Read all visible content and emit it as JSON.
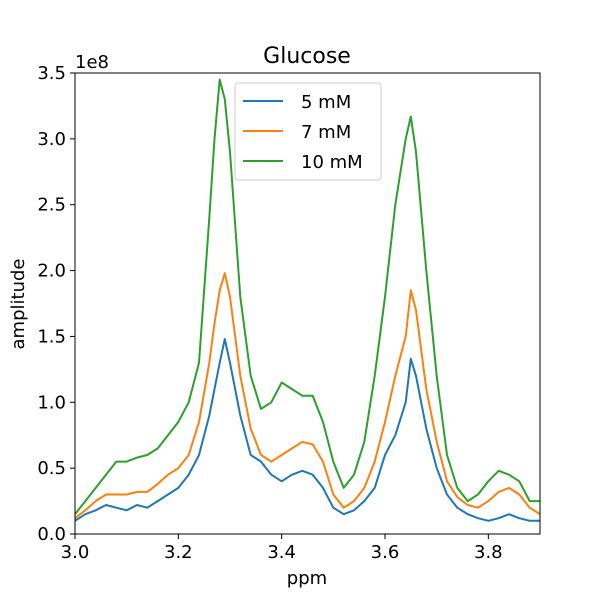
{
  "chart_data": {
    "type": "line",
    "title": "Glucose",
    "xlabel": "ppm",
    "ylabel": "amplitude",
    "y_offset_label": "1e8",
    "xlim": [
      3.0,
      3.9
    ],
    "ylim": [
      0,
      3.5
    ],
    "y_unit_multiplier": 100000000,
    "xticks": [
      3.0,
      3.2,
      3.4,
      3.6,
      3.8
    ],
    "xtick_labels": [
      "3.0",
      "3.2",
      "3.4",
      "3.6",
      "3.8"
    ],
    "yticks": [
      0.0,
      0.5,
      1.0,
      1.5,
      2.0,
      2.5,
      3.0,
      3.5
    ],
    "ytick_labels": [
      "0.0",
      "0.5",
      "1.0",
      "1.5",
      "2.0",
      "2.5",
      "3.0",
      "3.5"
    ],
    "grid": false,
    "legend_position": "top-center",
    "x": [
      3.0,
      3.02,
      3.04,
      3.06,
      3.08,
      3.1,
      3.12,
      3.14,
      3.16,
      3.18,
      3.2,
      3.22,
      3.24,
      3.26,
      3.27,
      3.28,
      3.29,
      3.3,
      3.32,
      3.34,
      3.36,
      3.38,
      3.4,
      3.42,
      3.44,
      3.46,
      3.48,
      3.5,
      3.52,
      3.54,
      3.56,
      3.58,
      3.6,
      3.62,
      3.64,
      3.65,
      3.66,
      3.68,
      3.7,
      3.72,
      3.74,
      3.76,
      3.78,
      3.8,
      3.82,
      3.84,
      3.86,
      3.88,
      3.9
    ],
    "series": [
      {
        "name": "5 mM",
        "color": "#1f77b4",
        "values": [
          0.1,
          0.15,
          0.18,
          0.22,
          0.2,
          0.18,
          0.22,
          0.2,
          0.25,
          0.3,
          0.35,
          0.45,
          0.6,
          0.9,
          1.1,
          1.3,
          1.48,
          1.3,
          0.9,
          0.6,
          0.55,
          0.45,
          0.4,
          0.45,
          0.48,
          0.45,
          0.35,
          0.2,
          0.15,
          0.18,
          0.25,
          0.35,
          0.6,
          0.75,
          1.0,
          1.33,
          1.2,
          0.8,
          0.5,
          0.3,
          0.2,
          0.15,
          0.12,
          0.1,
          0.12,
          0.15,
          0.12,
          0.1,
          0.1
        ]
      },
      {
        "name": "7 mM",
        "color": "#ff7f0e",
        "values": [
          0.12,
          0.18,
          0.25,
          0.3,
          0.3,
          0.3,
          0.32,
          0.32,
          0.38,
          0.45,
          0.5,
          0.6,
          0.85,
          1.3,
          1.6,
          1.85,
          1.98,
          1.8,
          1.2,
          0.8,
          0.6,
          0.55,
          0.6,
          0.65,
          0.7,
          0.68,
          0.55,
          0.3,
          0.2,
          0.25,
          0.35,
          0.55,
          0.85,
          1.2,
          1.5,
          1.85,
          1.7,
          1.1,
          0.7,
          0.4,
          0.28,
          0.22,
          0.2,
          0.25,
          0.32,
          0.35,
          0.3,
          0.2,
          0.15
        ]
      },
      {
        "name": "10 mM",
        "color": "#2ca02c",
        "values": [
          0.15,
          0.25,
          0.35,
          0.45,
          0.55,
          0.55,
          0.58,
          0.6,
          0.65,
          0.75,
          0.85,
          1.0,
          1.3,
          2.4,
          3.0,
          3.45,
          3.3,
          2.9,
          1.8,
          1.2,
          0.95,
          1.0,
          1.15,
          1.1,
          1.05,
          1.05,
          0.85,
          0.55,
          0.35,
          0.45,
          0.7,
          1.2,
          1.8,
          2.5,
          3.0,
          3.17,
          2.9,
          2.0,
          1.2,
          0.6,
          0.35,
          0.25,
          0.3,
          0.4,
          0.48,
          0.45,
          0.4,
          0.25,
          0.25
        ]
      }
    ]
  }
}
